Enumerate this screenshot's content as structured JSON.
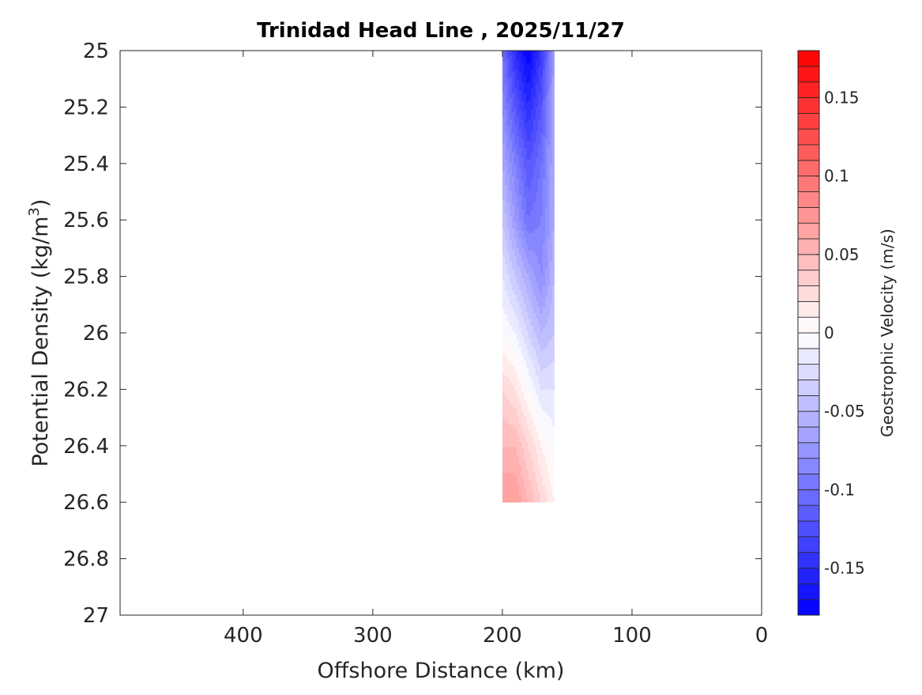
{
  "chart_data": {
    "type": "heatmap",
    "subtype": "filled-contour",
    "title": "Trinidad Head Line , 2025/11/27",
    "xlabel": "Offshore Distance (km)",
    "ylabel": "Potential Density (kg/m",
    "ylabel_sup": "3",
    "ylabel_end": ")",
    "xlim": [
      495,
      0
    ],
    "ylim": [
      27,
      25
    ],
    "xticks": [
      400,
      300,
      200,
      100,
      0
    ],
    "xtick_labels": [
      "400",
      "300",
      "200",
      "100",
      "0"
    ],
    "yticks": [
      25,
      25.2,
      25.4,
      25.6,
      25.8,
      26,
      26.2,
      26.4,
      26.6,
      26.8,
      27
    ],
    "ytick_labels": [
      "25",
      "25.2",
      "25.4",
      "25.6",
      "25.8",
      "26",
      "26.2",
      "26.4",
      "26.6",
      "26.8",
      "27"
    ],
    "grid": false,
    "x": [
      200,
      190,
      180,
      170,
      160
    ],
    "y": [
      25.0,
      25.2,
      25.4,
      25.6,
      25.8,
      26.0,
      26.2,
      26.4,
      26.6
    ],
    "z": [
      [
        -0.1,
        -0.15,
        -0.18,
        -0.14,
        -0.07
      ],
      [
        -0.08,
        -0.12,
        -0.15,
        -0.12,
        -0.06
      ],
      [
        -0.06,
        -0.09,
        -0.12,
        -0.1,
        -0.06
      ],
      [
        -0.04,
        -0.07,
        -0.1,
        -0.09,
        -0.06
      ],
      [
        -0.02,
        -0.04,
        -0.06,
        -0.08,
        -0.05
      ],
      [
        0.0,
        -0.01,
        -0.03,
        -0.05,
        -0.04
      ],
      [
        0.03,
        0.02,
        0.0,
        -0.02,
        -0.02
      ],
      [
        0.05,
        0.05,
        0.03,
        0.01,
        -0.005
      ],
      [
        0.07,
        0.07,
        0.05,
        0.03,
        0.01
      ]
    ],
    "contour_step": 0.01,
    "colorbar": {
      "label": "Geostrophic Velocity (m/s)",
      "clim": [
        -0.18,
        0.18
      ],
      "ticks": [
        -0.15,
        -0.1,
        -0.05,
        0,
        0.05,
        0.1,
        0.15
      ],
      "tick_labels": [
        "-0.15",
        "-0.1",
        "-0.05",
        "0",
        "0.05",
        "0.1",
        "0.15"
      ],
      "placement": "right",
      "low_color": "#0000ff",
      "mid_color": "#ffffff",
      "high_color": "#ff0000"
    }
  }
}
